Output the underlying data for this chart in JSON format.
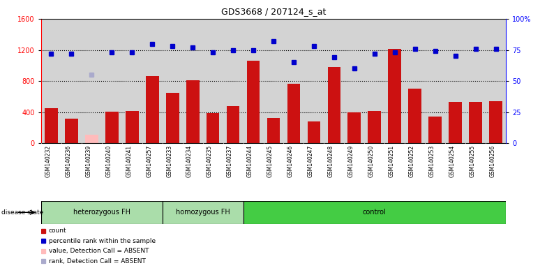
{
  "title": "GDS3668 / 207124_s_at",
  "samples": [
    "GSM140232",
    "GSM140236",
    "GSM140239",
    "GSM140240",
    "GSM140241",
    "GSM140257",
    "GSM140233",
    "GSM140234",
    "GSM140235",
    "GSM140237",
    "GSM140244",
    "GSM140245",
    "GSM140246",
    "GSM140247",
    "GSM140248",
    "GSM140249",
    "GSM140250",
    "GSM140251",
    "GSM140252",
    "GSM140253",
    "GSM140254",
    "GSM140255",
    "GSM140256"
  ],
  "counts": [
    450,
    320,
    110,
    410,
    420,
    860,
    650,
    810,
    390,
    480,
    1060,
    330,
    770,
    285,
    980,
    400,
    420,
    1210,
    700,
    340,
    530,
    530,
    540
  ],
  "absent_count_indices": [
    2
  ],
  "absent_rank_indices": [
    2
  ],
  "percentile_ranks": [
    72,
    72,
    55,
    73,
    73,
    80,
    78,
    77,
    73,
    75,
    75,
    82,
    65,
    78,
    69,
    60,
    72,
    73,
    76,
    74,
    70,
    76,
    76
  ],
  "groups": [
    {
      "label": "heterozygous FH",
      "start": 0,
      "end": 5,
      "color": "#AADDAA"
    },
    {
      "label": "homozygous FH",
      "start": 6,
      "end": 9,
      "color": "#AADDAA"
    },
    {
      "label": "control",
      "start": 10,
      "end": 22,
      "color": "#44CC44"
    }
  ],
  "left_ylim": [
    0,
    1600
  ],
  "right_ylim": [
    0,
    100
  ],
  "left_yticks": [
    0,
    400,
    800,
    1200,
    1600
  ],
  "right_ytick_vals": [
    0,
    25,
    50,
    75,
    100
  ],
  "right_ytick_labels": [
    "0",
    "25",
    "50",
    "75",
    "100%"
  ],
  "dotted_line_vals": [
    400,
    800,
    1200
  ],
  "bar_color": "#CC1111",
  "absent_bar_color": "#FFBBBB",
  "dot_color": "#0000CC",
  "absent_dot_color": "#AAAACC",
  "plot_bg_color": "#D3D3D3",
  "xtick_area_bg": "#CCCCCC",
  "legend_items": [
    {
      "color": "#CC1111",
      "label": "count"
    },
    {
      "color": "#0000CC",
      "label": "percentile rank within the sample"
    },
    {
      "color": "#FFBBBB",
      "label": "value, Detection Call = ABSENT"
    },
    {
      "color": "#AAAACC",
      "label": "rank, Detection Call = ABSENT"
    }
  ]
}
